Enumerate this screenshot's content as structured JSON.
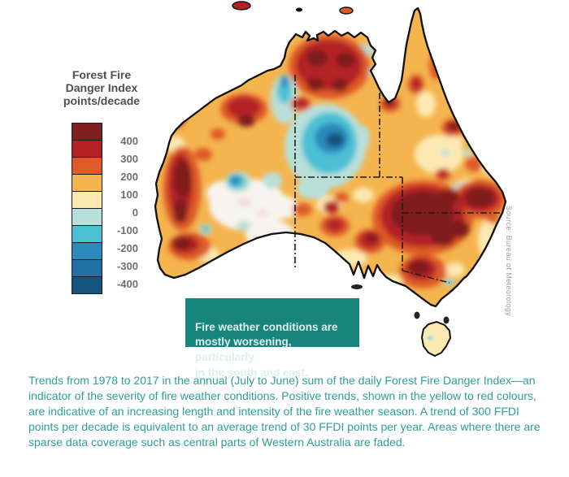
{
  "legend": {
    "title": "Forest Fire\nDanger Index\npoints/decade",
    "scale_colors": [
      "#7f1f1f",
      "#b32025",
      "#de5a28",
      "#f4b44e",
      "#fce9b2",
      "#b8e0da",
      "#4cc0d4",
      "#2b8abc",
      "#1f71a8",
      "#155380"
    ],
    "ticks": [
      "400",
      "300",
      "200",
      "100",
      "0",
      "-100",
      "-200",
      "-300",
      "-400"
    ]
  },
  "annotation": {
    "text": "Fire weather conditions are\nmostly worsening, particularly\nin the south and east.",
    "background": "#17857c"
  },
  "source": {
    "text": "Source: Bureau of Meteorology"
  },
  "caption": {
    "text": "Trends from 1978 to 2017 in the annual (July to June) sum of the daily Forest Fire Danger Index—an indicator of the severity of fire weather conditions. Positive trends, shown in the yellow to red colours, are indicative of an increasing length and intensity of the fire weather season. A trend of 300 FFDI points per decade is equivalent to an average trend of 30 FFDI points per year. Areas where there are sparse data coverage such as central parts of Western Australia are faded.",
    "color": "#2e9f94"
  },
  "chart_data": {
    "type": "heatmap",
    "title": "Forest Fire Danger Index points/decade",
    "region": "Australia",
    "scale_ticks": [
      400,
      300,
      200,
      100,
      0,
      -100,
      -200,
      -300,
      -400
    ],
    "scale_colors_top_to_bottom": [
      "#7f1f1f",
      "#b32025",
      "#de5a28",
      "#f4b44e",
      "#fce9b2",
      "#b8e0da",
      "#4cc0d4",
      "#2b8abc",
      "#1f71a8",
      "#155380"
    ],
    "units": "FFDI points per decade",
    "period": "1978 to 2017 (annual July to June sum)",
    "annotation": "Fire weather conditions are mostly worsening, particularly in the south and east.",
    "notes": "Positive (yellow-red) trends dominate most of the continent, strongest in the south and east; negative (blue) trend patch in central Northern Territory; faded sparse-data region in central Western Australia.",
    "legend_position": "left"
  }
}
